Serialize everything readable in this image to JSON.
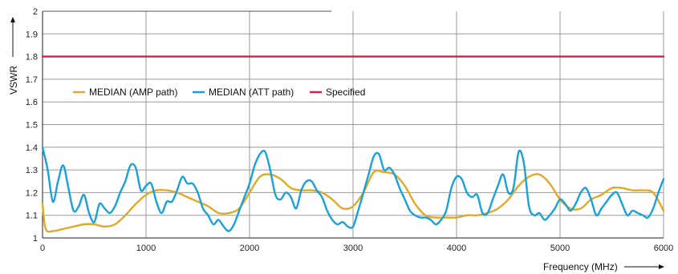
{
  "chart_data": {
    "type": "line",
    "title": "",
    "xlabel": "Frequency (MHz)",
    "ylabel": "VSWR",
    "xlim": [
      0,
      6000
    ],
    "ylim": [
      1,
      2
    ],
    "xticks": [
      0,
      1000,
      2000,
      3000,
      4000,
      5000,
      6000
    ],
    "yticks": [
      1,
      1.1,
      1.2,
      1.3,
      1.4,
      1.5,
      1.6,
      1.7,
      1.8,
      1.9,
      2
    ],
    "grid": true,
    "legend_position": "upper-left",
    "series": [
      {
        "name": "MEDIAN (AMP path)",
        "color": "#e0a928",
        "x": [
          0,
          30,
          100,
          200,
          300,
          400,
          500,
          600,
          700,
          800,
          900,
          1000,
          1100,
          1200,
          1300,
          1400,
          1500,
          1600,
          1700,
          1800,
          1900,
          2000,
          2100,
          2200,
          2300,
          2400,
          2500,
          2600,
          2700,
          2800,
          2900,
          3000,
          3100,
          3200,
          3300,
          3400,
          3500,
          3600,
          3700,
          3800,
          3900,
          4000,
          4100,
          4200,
          4300,
          4400,
          4500,
          4600,
          4700,
          4800,
          4900,
          5000,
          5100,
          5200,
          5300,
          5400,
          5500,
          5600,
          5700,
          5800,
          5900,
          6000
        ],
        "values": [
          1.15,
          1.04,
          1.03,
          1.04,
          1.05,
          1.06,
          1.06,
          1.05,
          1.06,
          1.1,
          1.15,
          1.19,
          1.21,
          1.21,
          1.2,
          1.18,
          1.16,
          1.14,
          1.11,
          1.11,
          1.13,
          1.2,
          1.27,
          1.28,
          1.26,
          1.22,
          1.21,
          1.21,
          1.2,
          1.17,
          1.13,
          1.14,
          1.2,
          1.29,
          1.29,
          1.28,
          1.23,
          1.15,
          1.1,
          1.09,
          1.09,
          1.09,
          1.1,
          1.1,
          1.11,
          1.13,
          1.17,
          1.23,
          1.27,
          1.28,
          1.24,
          1.17,
          1.13,
          1.13,
          1.17,
          1.19,
          1.22,
          1.22,
          1.21,
          1.21,
          1.2,
          1.12
        ]
      },
      {
        "name": "MEDIAN (ATT path)",
        "color": "#1aa1d8",
        "x": [
          0,
          50,
          100,
          150,
          200,
          250,
          300,
          350,
          400,
          450,
          500,
          550,
          600,
          650,
          700,
          750,
          800,
          850,
          900,
          950,
          1000,
          1050,
          1100,
          1150,
          1200,
          1250,
          1300,
          1350,
          1400,
          1450,
          1500,
          1550,
          1600,
          1650,
          1700,
          1750,
          1800,
          1850,
          1900,
          1950,
          2000,
          2050,
          2100,
          2150,
          2200,
          2250,
          2300,
          2350,
          2400,
          2450,
          2500,
          2550,
          2600,
          2650,
          2700,
          2750,
          2800,
          2850,
          2900,
          2950,
          3000,
          3050,
          3100,
          3150,
          3200,
          3250,
          3300,
          3350,
          3400,
          3450,
          3500,
          3550,
          3600,
          3650,
          3700,
          3750,
          3800,
          3850,
          3900,
          3950,
          4000,
          4050,
          4100,
          4150,
          4200,
          4250,
          4300,
          4350,
          4400,
          4450,
          4500,
          4550,
          4600,
          4650,
          4700,
          4750,
          4800,
          4850,
          4900,
          4950,
          5000,
          5050,
          5100,
          5150,
          5200,
          5250,
          5300,
          5350,
          5400,
          5450,
          5500,
          5550,
          5600,
          5650,
          5700,
          5750,
          5800,
          5850,
          5900,
          5950,
          6000
        ],
        "values": [
          1.4,
          1.3,
          1.16,
          1.25,
          1.32,
          1.22,
          1.12,
          1.14,
          1.19,
          1.11,
          1.07,
          1.15,
          1.13,
          1.11,
          1.14,
          1.2,
          1.25,
          1.32,
          1.31,
          1.21,
          1.23,
          1.24,
          1.16,
          1.11,
          1.16,
          1.16,
          1.21,
          1.27,
          1.24,
          1.24,
          1.2,
          1.13,
          1.1,
          1.06,
          1.08,
          1.05,
          1.03,
          1.06,
          1.12,
          1.18,
          1.24,
          1.32,
          1.37,
          1.38,
          1.3,
          1.19,
          1.17,
          1.2,
          1.18,
          1.13,
          1.21,
          1.25,
          1.25,
          1.21,
          1.18,
          1.12,
          1.08,
          1.06,
          1.07,
          1.05,
          1.05,
          1.12,
          1.2,
          1.28,
          1.36,
          1.37,
          1.3,
          1.31,
          1.28,
          1.22,
          1.17,
          1.12,
          1.1,
          1.09,
          1.09,
          1.08,
          1.06,
          1.08,
          1.12,
          1.22,
          1.27,
          1.26,
          1.2,
          1.18,
          1.19,
          1.11,
          1.11,
          1.17,
          1.23,
          1.28,
          1.2,
          1.22,
          1.38,
          1.33,
          1.14,
          1.1,
          1.11,
          1.08,
          1.1,
          1.13,
          1.17,
          1.15,
          1.12,
          1.15,
          1.2,
          1.22,
          1.17,
          1.1,
          1.13,
          1.16,
          1.19,
          1.2,
          1.15,
          1.1,
          1.12,
          1.11,
          1.1,
          1.09,
          1.13,
          1.2,
          1.26
        ]
      },
      {
        "name": "Specified",
        "color": "#d61f4f",
        "x": [
          0,
          6000
        ],
        "values": [
          1.8,
          1.8
        ]
      }
    ]
  }
}
